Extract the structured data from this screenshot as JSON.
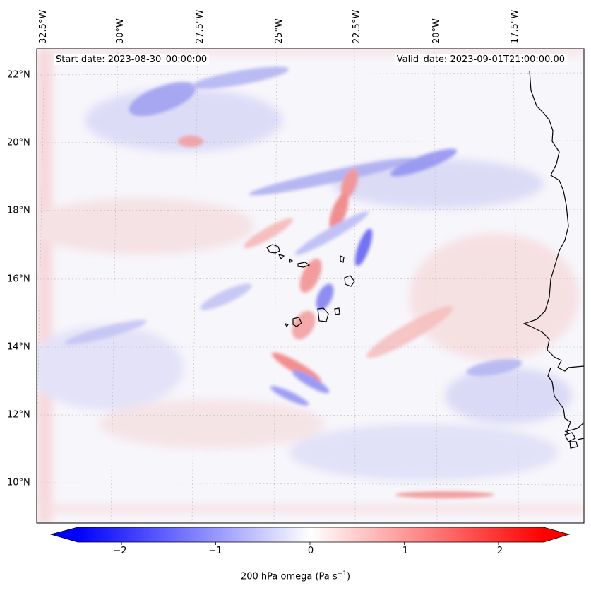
{
  "map": {
    "start_date": "Start date: 2023-08-30_00:00:00",
    "valid_date": "Valid_date: 2023-09-01T21:00:00.00",
    "lon_labels": [
      "32.5°W",
      "30°W",
      "27.5°W",
      "25°W",
      "22.5°W",
      "20°W",
      "17.5°W"
    ],
    "lat_labels": [
      "22°N",
      "20°N",
      "18°N",
      "16°N",
      "14°N",
      "12°N",
      "10°N"
    ],
    "colormap": {
      "low": "#0000ff",
      "mid": "#ffffff",
      "high": "#ff0000"
    },
    "coastline_color": "#000000"
  },
  "colorbar": {
    "label_prefix": "200 hPa omega (Pa s",
    "label_exponent": "−1",
    "label_suffix": ")",
    "ticks": [
      "−2",
      "−1",
      "0",
      "1",
      "2"
    ],
    "range": [
      -2.75,
      2.75
    ]
  }
}
